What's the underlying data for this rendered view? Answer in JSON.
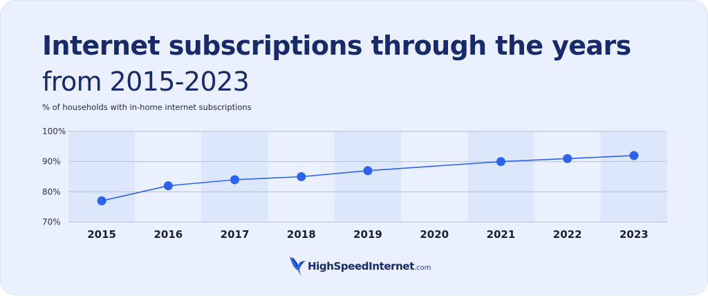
{
  "header": {
    "title_line1": "Internet subscriptions through the years",
    "title_line2": "from 2015-2023",
    "subtitle": "% of households with in-home internet subscriptions"
  },
  "chart_data": {
    "type": "line",
    "title": "Internet subscriptions through the years from 2015-2023",
    "subtitle": "% of households with in-home internet subscriptions",
    "xlabel": "",
    "ylabel": "",
    "categories": [
      "2015",
      "2016",
      "2017",
      "2018",
      "2019",
      "2020",
      "2021",
      "2022",
      "2023"
    ],
    "series": [
      {
        "values": [
          77,
          82,
          84,
          85,
          87,
          null,
          90,
          91,
          92
        ],
        "color": "#2b63f0"
      }
    ],
    "ylim": [
      70,
      100
    ],
    "yticks": [
      "70%",
      "80%",
      "90%",
      "100%"
    ],
    "grid": true,
    "legend": "none"
  },
  "colors": {
    "background": "#eaf0fd",
    "stripe": "#dde7fb",
    "gridline": "#b8bfd6",
    "line": "#2b63f0",
    "title": "#172a6b"
  },
  "logo": {
    "icon": "hummingbird-icon",
    "name": "HighSpeedInternet",
    "suffix": ".com"
  }
}
